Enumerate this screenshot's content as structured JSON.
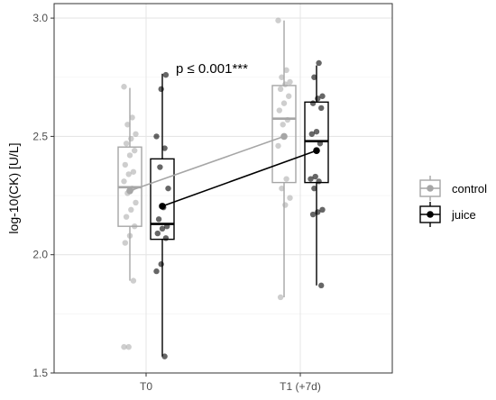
{
  "chart_data": {
    "type": "box-strip-line",
    "title": "",
    "xlabel": "",
    "ylabel": "log-10(CK) [U/L]",
    "categories": [
      "T0",
      "T1 (+7d)"
    ],
    "ylim": [
      1.5,
      3.05
    ],
    "yticks": [
      1.5,
      2.0,
      2.5,
      3.0
    ],
    "ytick_labels": [
      "1.5",
      "2.0",
      "2.5",
      "3.0"
    ],
    "grid": true,
    "legend_position": "right",
    "annotation": "p ≤ 0.001***",
    "series": [
      {
        "name": "control",
        "color": "#a6a6a6",
        "means": [
          2.27,
          2.5
        ],
        "boxes": [
          {
            "whisker_low": 1.89,
            "q1": 2.12,
            "median": 2.285,
            "q3": 2.455,
            "whisker_high": 2.705
          },
          {
            "whisker_low": 1.82,
            "q1": 2.305,
            "median": 2.575,
            "q3": 2.715,
            "whisker_high": 2.99
          }
        ],
        "points": [
          [
            1.61,
            1.61,
            1.89,
            2.05,
            2.08,
            2.12,
            2.16,
            2.19,
            2.22,
            2.26,
            2.28,
            2.31,
            2.34,
            2.35,
            2.38,
            2.42,
            2.44,
            2.47,
            2.49,
            2.51,
            2.55,
            2.58,
            2.71
          ],
          [
            1.82,
            2.21,
            2.24,
            2.28,
            2.32,
            2.46,
            2.55,
            2.57,
            2.61,
            2.64,
            2.67,
            2.7,
            2.72,
            2.73,
            2.75,
            2.78,
            2.99
          ]
        ]
      },
      {
        "name": "juice",
        "color": "#000000",
        "means": [
          2.205,
          2.44
        ],
        "boxes": [
          {
            "whisker_low": 1.57,
            "q1": 2.065,
            "median": 2.13,
            "q3": 2.405,
            "whisker_high": 2.765
          },
          {
            "whisker_low": 1.87,
            "q1": 2.305,
            "median": 2.48,
            "q3": 2.645,
            "whisker_high": 2.8
          }
        ],
        "points": [
          [
            1.57,
            1.93,
            1.96,
            2.07,
            2.09,
            2.11,
            2.12,
            2.15,
            2.2,
            2.28,
            2.37,
            2.45,
            2.5,
            2.7,
            2.76
          ],
          [
            1.87,
            2.17,
            2.18,
            2.19,
            2.28,
            2.31,
            2.32,
            2.33,
            2.47,
            2.51,
            2.52,
            2.62,
            2.64,
            2.66,
            2.67,
            2.75,
            2.81
          ]
        ]
      }
    ]
  }
}
